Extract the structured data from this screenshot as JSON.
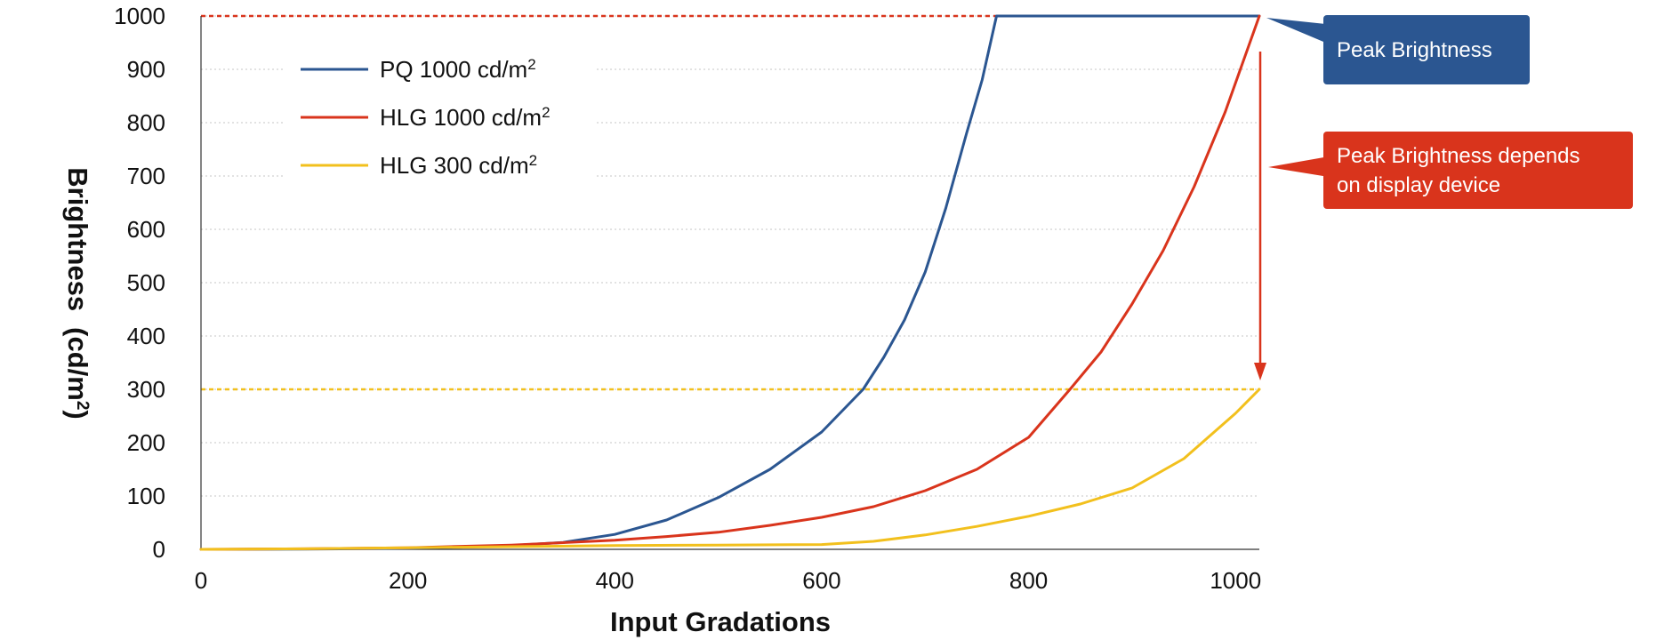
{
  "chart_data": {
    "type": "line",
    "xlabel": "Input Gradations",
    "ylabel": "Brightness",
    "ylabel_unit_prefix": "(cd/m",
    "ylabel_unit_sup": "2",
    "ylabel_unit_suffix": ")",
    "xlim": [
      0,
      1023
    ],
    "ylim": [
      0,
      1000
    ],
    "x_ticks": [
      "0",
      "200",
      "400",
      "600",
      "800",
      "1000"
    ],
    "y_ticks": [
      "0",
      "100",
      "200",
      "300",
      "400",
      "500",
      "600",
      "700",
      "800",
      "900",
      "1000"
    ],
    "grid": "horizontal dotted",
    "legend_position": "top-left",
    "series": [
      {
        "name_main": "PQ 1000 cd/m",
        "name_sup": "2",
        "color": "#2b5691",
        "x": [
          0,
          100,
          200,
          250,
          300,
          350,
          400,
          450,
          500,
          550,
          600,
          640,
          660,
          680,
          700,
          720,
          740,
          755,
          769,
          800,
          850,
          900,
          950,
          1000,
          1023
        ],
        "y": [
          0,
          0.3,
          2,
          4,
          7,
          13,
          28,
          55,
          97,
          150,
          220,
          300,
          360,
          430,
          520,
          640,
          780,
          880,
          1000,
          1000,
          1000,
          1000,
          1000,
          1000,
          1000
        ]
      },
      {
        "name_main": "HLG 1000 cd/m",
        "name_sup": "2",
        "color": "#d9341c",
        "x": [
          0,
          100,
          200,
          300,
          400,
          450,
          500,
          550,
          600,
          650,
          700,
          750,
          800,
          840,
          870,
          900,
          930,
          960,
          990,
          1023
        ],
        "y": [
          0,
          1,
          3,
          8,
          17,
          24,
          32,
          45,
          60,
          80,
          110,
          150,
          210,
          300,
          370,
          460,
          560,
          680,
          820,
          1000
        ]
      },
      {
        "name_main": "HLG 300 cd/m",
        "name_sup": "2",
        "color": "#f2c01d",
        "x": [
          0,
          100,
          200,
          300,
          400,
          500,
          600,
          650,
          700,
          750,
          800,
          850,
          900,
          950,
          1000,
          1023
        ],
        "y": [
          0,
          1,
          3,
          5,
          7,
          8,
          9,
          15,
          27,
          43,
          62,
          85,
          115,
          170,
          255,
          300
        ]
      }
    ],
    "reference_lines": [
      {
        "y": 1000,
        "color": "#d9341c"
      },
      {
        "y": 300,
        "color": "#f2c01d"
      }
    ],
    "annotations": [
      {
        "text_lines": [
          "Peak Brightness"
        ],
        "color": "#2b5691"
      },
      {
        "text_lines": [
          "Peak Brightness depends",
          "on display device"
        ],
        "color": "#d9341c"
      }
    ]
  }
}
